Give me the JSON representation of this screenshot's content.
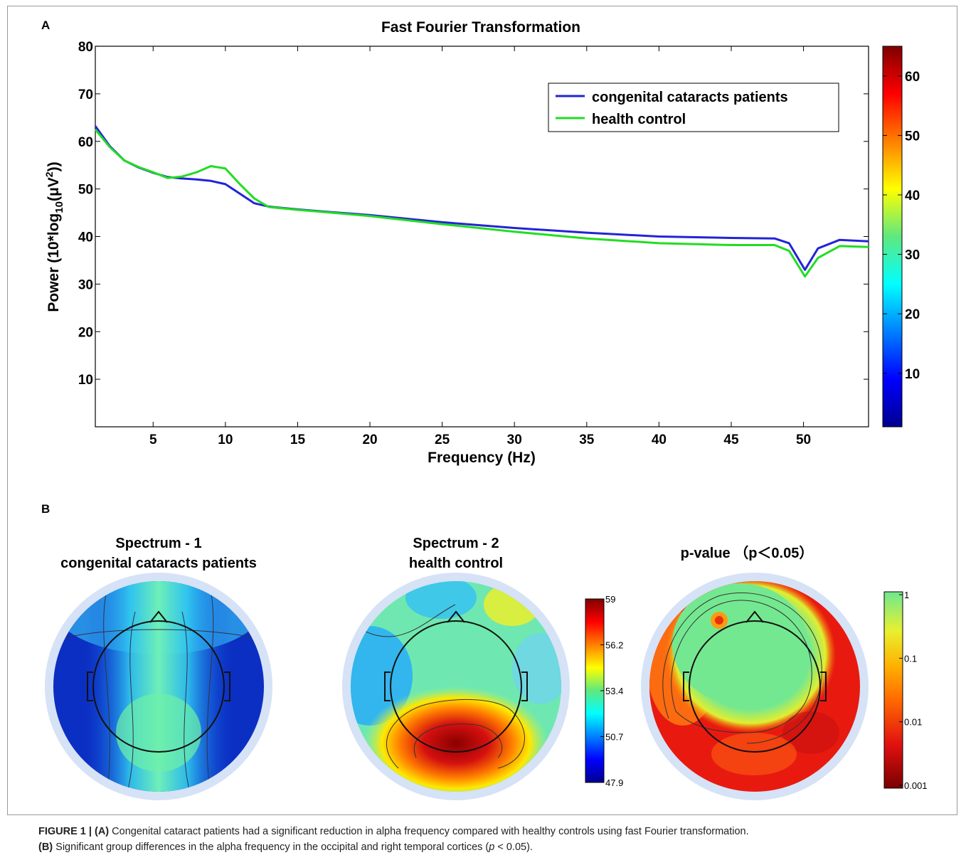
{
  "panel_a_letter": "A",
  "panel_b_letter": "B",
  "chart_data": [
    {
      "type": "line",
      "title": "Fast Fourier Transformation",
      "xlabel": "Frequency (Hz)",
      "ylabel": "Power (10*log10(μV²))",
      "xlim": [
        1,
        54.5
      ],
      "ylim": [
        0,
        80
      ],
      "xticks": [
        "5",
        "10",
        "15",
        "20",
        "25",
        "30",
        "35",
        "40",
        "45",
        "50"
      ],
      "yticks": [
        "10",
        "20",
        "30",
        "40",
        "50",
        "60",
        "70",
        "80"
      ],
      "legend_position": "top-right",
      "series": [
        {
          "name": "congenital cataracts patients",
          "color": "#2323d8",
          "points": [
            [
              1,
              63.2
            ],
            [
              2,
              59
            ],
            [
              3,
              56
            ],
            [
              4,
              54.5
            ],
            [
              5,
              53.4
            ],
            [
              6,
              52.5
            ],
            [
              7,
              52.2
            ],
            [
              8,
              52
            ],
            [
              9,
              51.7
            ],
            [
              10,
              51
            ],
            [
              11,
              49
            ],
            [
              12,
              47
            ],
            [
              13,
              46.3
            ],
            [
              15,
              45.7
            ],
            [
              17,
              45.2
            ],
            [
              20,
              44.5
            ],
            [
              25,
              43
            ],
            [
              30,
              41.8
            ],
            [
              35,
              40.8
            ],
            [
              40,
              40
            ],
            [
              45,
              39.7
            ],
            [
              48,
              39.6
            ],
            [
              49,
              38.6
            ],
            [
              50.1,
              33
            ],
            [
              51,
              37.5
            ],
            [
              52.5,
              39.3
            ],
            [
              54.5,
              39
            ]
          ]
        },
        {
          "name": "health control",
          "color": "#22dd22",
          "points": [
            [
              1,
              62.5
            ],
            [
              2,
              58.8
            ],
            [
              3,
              56
            ],
            [
              4,
              54.6
            ],
            [
              5,
              53.5
            ],
            [
              6,
              52.3
            ],
            [
              7,
              52.6
            ],
            [
              8,
              53.5
            ],
            [
              9,
              54.8
            ],
            [
              10,
              54.3
            ],
            [
              11,
              51
            ],
            [
              12,
              48
            ],
            [
              13,
              46.2
            ],
            [
              15,
              45.6
            ],
            [
              17,
              45.1
            ],
            [
              20,
              44.3
            ],
            [
              25,
              42.6
            ],
            [
              30,
              41
            ],
            [
              35,
              39.6
            ],
            [
              40,
              38.6
            ],
            [
              45,
              38.2
            ],
            [
              48,
              38.2
            ],
            [
              49,
              37
            ],
            [
              50.1,
              31.6
            ],
            [
              51,
              35.5
            ],
            [
              52.5,
              38
            ],
            [
              54.5,
              37.8
            ]
          ]
        }
      ],
      "colorbar": {
        "range": [
          1,
          65
        ],
        "ticks": [
          "10",
          "20",
          "30",
          "40",
          "50",
          "60"
        ]
      }
    },
    {
      "type": "heatmap",
      "title": "Spectrum - 1",
      "subtitle": "congenital cataracts patients"
    },
    {
      "type": "heatmap",
      "title": "Spectrum - 2",
      "subtitle": "health control",
      "colorbar_ticks": [
        "59",
        "56.2",
        "53.4",
        "50.7",
        "47.9"
      ]
    },
    {
      "type": "heatmap",
      "title": "p-value （p＜0.05）",
      "colorbar_ticks": [
        "1",
        "0.1",
        "0.01",
        "0.001"
      ]
    }
  ],
  "caption": {
    "label": "FIGURE 1 | ",
    "a_tag": "(A)",
    "a_text": " Congenital cataract patients had a significant reduction in alpha frequency compared with healthy controls using fast Fourier transformation.",
    "b_tag": "(B)",
    "b_text_1": " Significant group differences in the alpha frequency in the occipital and right temporal cortices (",
    "b_p": "p",
    "b_text_2": " < 0.05)."
  },
  "colors": {
    "jet_bottom": "#00008f",
    "jet_top": "#800000",
    "head_outline": "#111111"
  }
}
